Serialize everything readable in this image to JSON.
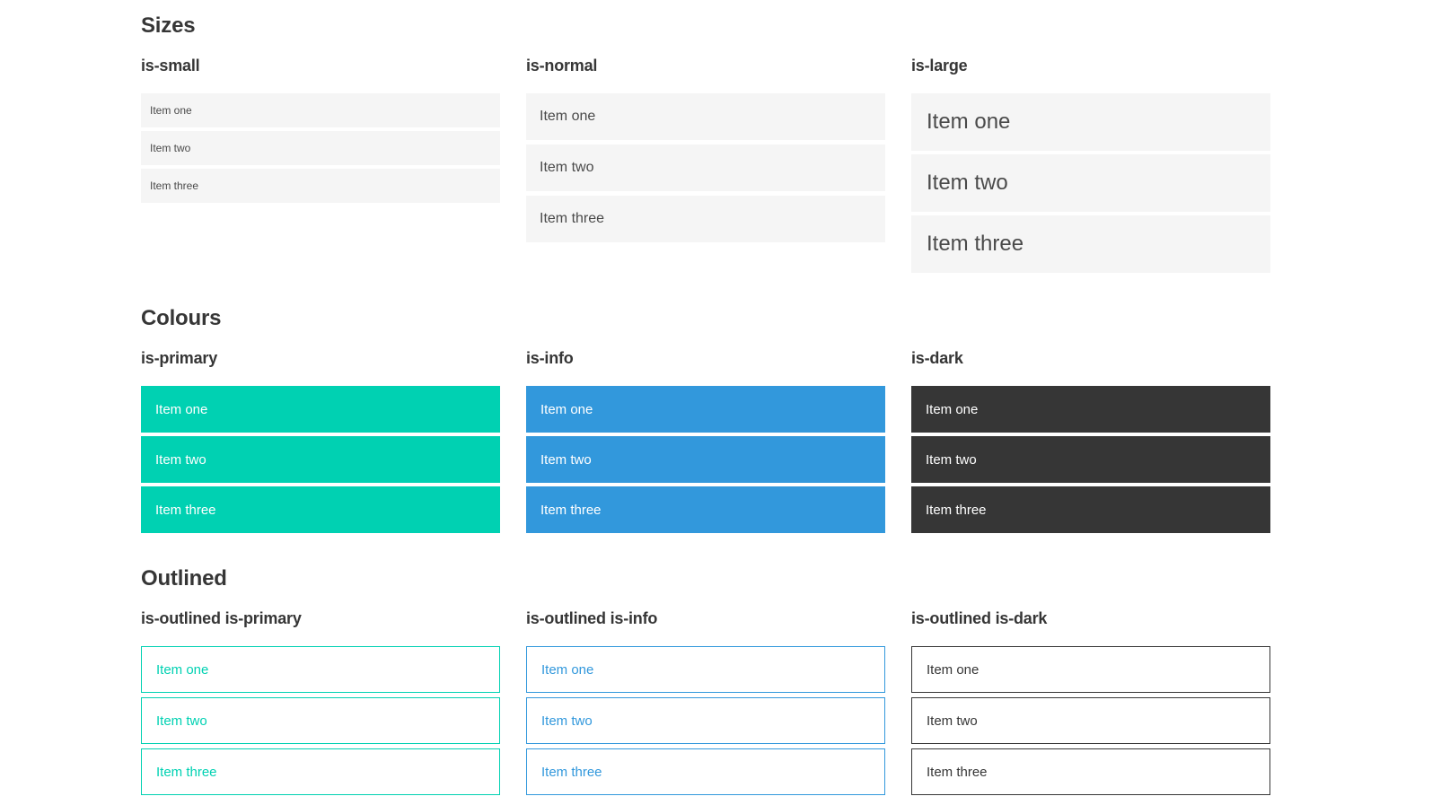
{
  "sections": [
    {
      "title": "Sizes",
      "groups": [
        {
          "label": "is-small",
          "variant": "small",
          "items": [
            "Item one",
            "Item two",
            "Item three"
          ]
        },
        {
          "label": "is-normal",
          "variant": "normal",
          "items": [
            "Item one",
            "Item two",
            "Item three"
          ]
        },
        {
          "label": "is-large",
          "variant": "large",
          "items": [
            "Item one",
            "Item two",
            "Item three"
          ]
        }
      ]
    },
    {
      "title": "Colours",
      "groups": [
        {
          "label": "is-primary",
          "variant": "primary",
          "items": [
            "Item one",
            "Item two",
            "Item three"
          ]
        },
        {
          "label": "is-info",
          "variant": "info",
          "items": [
            "Item one",
            "Item two",
            "Item three"
          ]
        },
        {
          "label": "is-dark",
          "variant": "dark",
          "items": [
            "Item one",
            "Item two",
            "Item three"
          ]
        }
      ]
    },
    {
      "title": "Outlined",
      "groups": [
        {
          "label": "is-outlined is-primary",
          "variant": "outlined-primary",
          "items": [
            "Item one",
            "Item two",
            "Item three"
          ]
        },
        {
          "label": "is-outlined is-info",
          "variant": "outlined-info",
          "items": [
            "Item one",
            "Item two",
            "Item three"
          ]
        },
        {
          "label": "is-outlined is-dark",
          "variant": "outlined-dark",
          "items": [
            "Item one",
            "Item two",
            "Item three"
          ]
        }
      ]
    }
  ],
  "colors": {
    "primary": "#00d1b2",
    "info": "#3298dc",
    "dark": "#363636",
    "item_light_bg": "#f5f5f5",
    "item_text": "#4a4a4a",
    "heading_text": "#363636",
    "on_color_text": "#ffffff",
    "page_bg": "#ffffff"
  }
}
